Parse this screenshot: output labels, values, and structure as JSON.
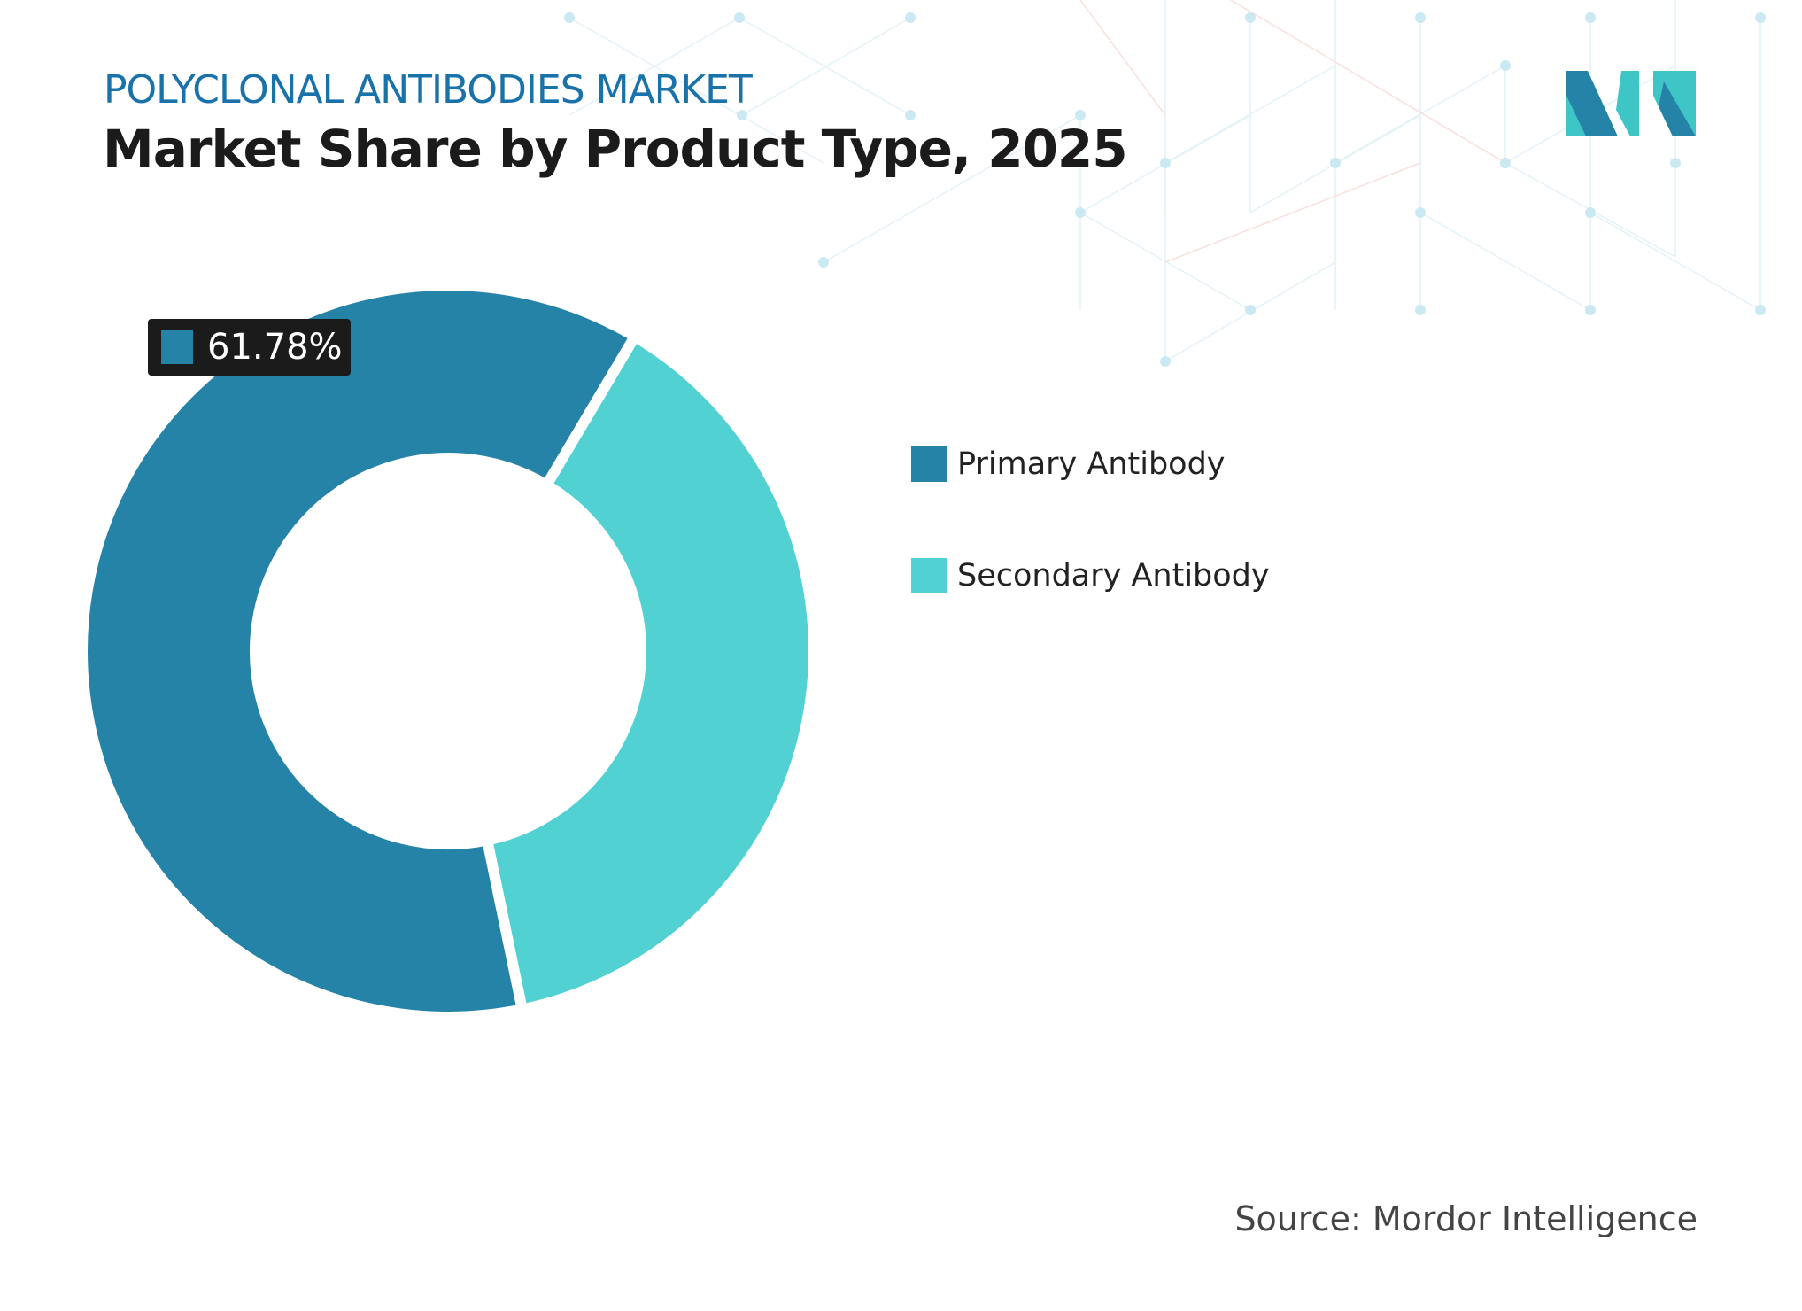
{
  "header": {
    "subtitle": "POLYCLONAL ANTIBODIES MARKET",
    "title": "Market Share by Product Type, 2025"
  },
  "chart_data": {
    "type": "pie",
    "variant": "donut",
    "categories": [
      "Primary Antibody",
      "Secondary Antibody"
    ],
    "values": [
      61.78,
      38.22
    ],
    "colors": [
      "#2683a8",
      "#52d1d3"
    ],
    "data_labels": [
      {
        "category": "Primary Antibody",
        "text": "61.78%"
      }
    ],
    "legend": "right"
  },
  "footer": {
    "source": "Source: Mordor Intelligence"
  },
  "logo": {
    "name": "mordor-intelligence-logo",
    "colors": [
      "#2683a8",
      "#3ec6c6"
    ]
  }
}
